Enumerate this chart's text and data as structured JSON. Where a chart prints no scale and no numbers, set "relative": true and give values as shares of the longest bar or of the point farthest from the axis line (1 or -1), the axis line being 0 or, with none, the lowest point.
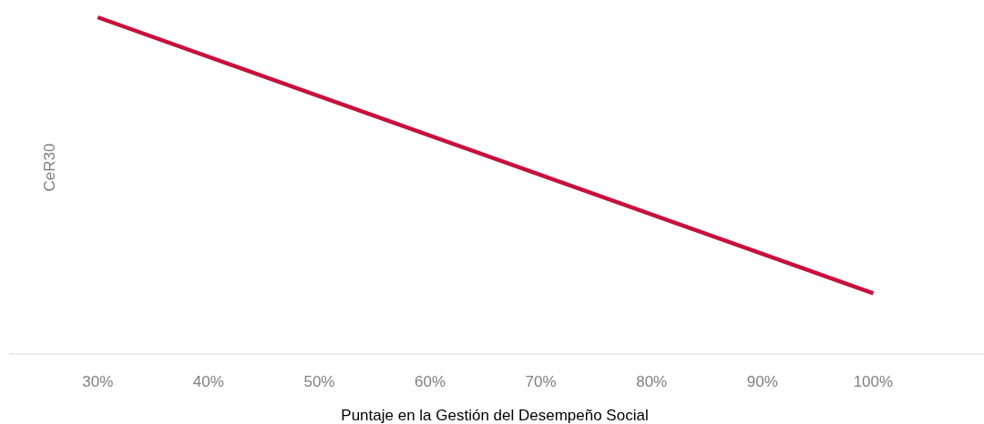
{
  "chart_data": {
    "type": "line",
    "xlabel": "Puntaje en la Gestión del Desempeño Social",
    "ylabel": "CeR30",
    "relative": true,
    "x": [
      30,
      100
    ],
    "series": [
      {
        "color": "#c8103c",
        "values": [
          1,
          0.18
        ]
      }
    ],
    "xlim": [
      22,
      110
    ],
    "xticks": [
      {
        "value": 30,
        "label": "30%"
      },
      {
        "value": 40,
        "label": "40%"
      },
      {
        "value": 50,
        "label": "50%"
      },
      {
        "value": 60,
        "label": "60%"
      },
      {
        "value": 70,
        "label": "70%"
      },
      {
        "value": 80,
        "label": "80%"
      },
      {
        "value": 90,
        "label": "90%"
      },
      {
        "value": 100,
        "label": "100%"
      }
    ]
  }
}
